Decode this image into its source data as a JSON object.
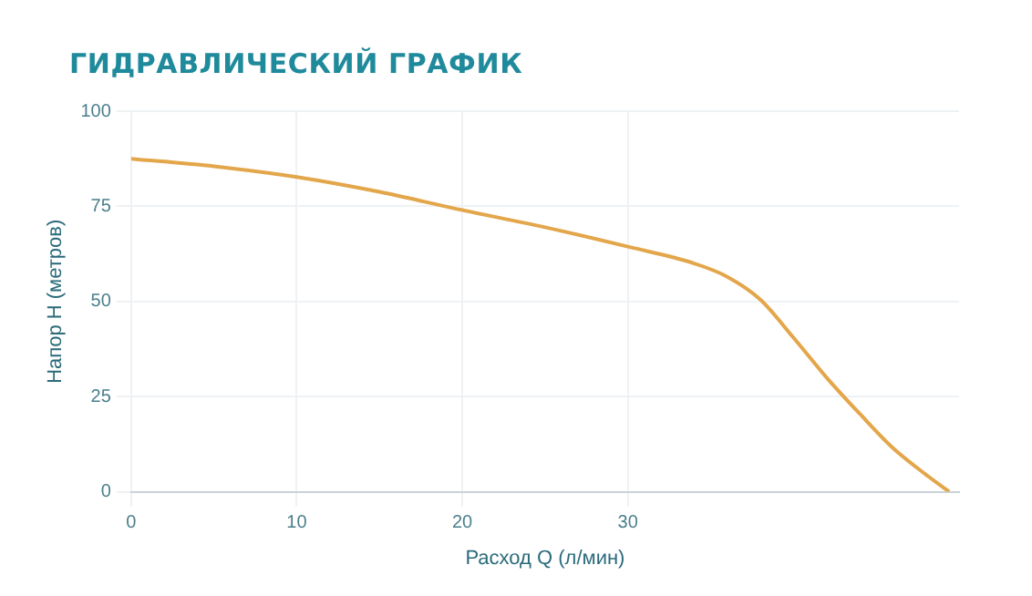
{
  "chart_data": {
    "type": "line",
    "title": "ГИДРАВЛИЧЕСКИЙ ГРАФИК",
    "xlabel": "Расход Q (л/мин)",
    "ylabel": "Напор H (метров)",
    "x": [
      0,
      5,
      10,
      15,
      20,
      25,
      30,
      34,
      36,
      38,
      40,
      42,
      44,
      46,
      48,
      49.4
    ],
    "series": [
      {
        "color": "#e3a64a",
        "values": [
          87.5,
          85.5,
          82.7,
          78.8,
          74,
          69.5,
          64.4,
          60,
          56.5,
          50.5,
          40.5,
          30,
          20.5,
          11.5,
          4.5,
          0
        ]
      }
    ],
    "xlim": [
      0,
      50
    ],
    "xticks": [
      0,
      10,
      20,
      30
    ],
    "ylim": [
      0,
      100
    ],
    "yticks": [
      0,
      25,
      50,
      75,
      100
    ],
    "grid": true,
    "legend": false,
    "marker": "none",
    "line_style": "solid"
  }
}
